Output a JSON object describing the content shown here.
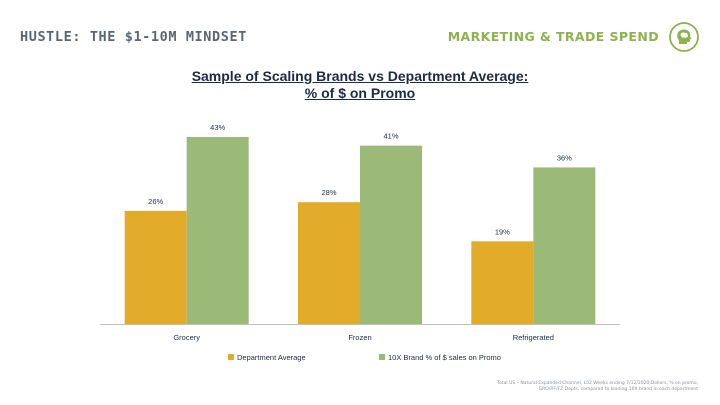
{
  "header": {
    "left_title": "HUSTLE: THE $1-10M MINDSET",
    "right_title": "MARKETING & TRADE SPEND",
    "logo_icon": "brain-head-icon"
  },
  "footnote": {
    "line1": "Total US – Natural Expanded Channel, L52 Weeks ending 7/12/2020;Dollars, % on promo,",
    "line2": "GRO/RF/FZ Depts, compared to leading 10X brand in each department"
  },
  "colors": {
    "department": "#e3ab2a",
    "brand": "#9bba77",
    "text": "#1f2a44",
    "header_left": "#5b6670",
    "header_right": "#8db34f"
  },
  "chart_data": {
    "type": "bar",
    "title": "Sample of Scaling Brands vs Department Average:",
    "subtitle": "% of $ on Promo",
    "categories": [
      "Grocery",
      "Frozen",
      "Refrigerated"
    ],
    "series": [
      {
        "name": "Department Average",
        "values": [
          26,
          28,
          19
        ],
        "labels": [
          "26%",
          "28%",
          "19%"
        ]
      },
      {
        "name": "10X Brand % of $ sales on Promo",
        "values": [
          43,
          41,
          36
        ],
        "labels": [
          "43%",
          "41%",
          "36%"
        ]
      }
    ],
    "ylim": [
      0,
      50
    ],
    "grid": false,
    "legend_position": "bottom"
  }
}
